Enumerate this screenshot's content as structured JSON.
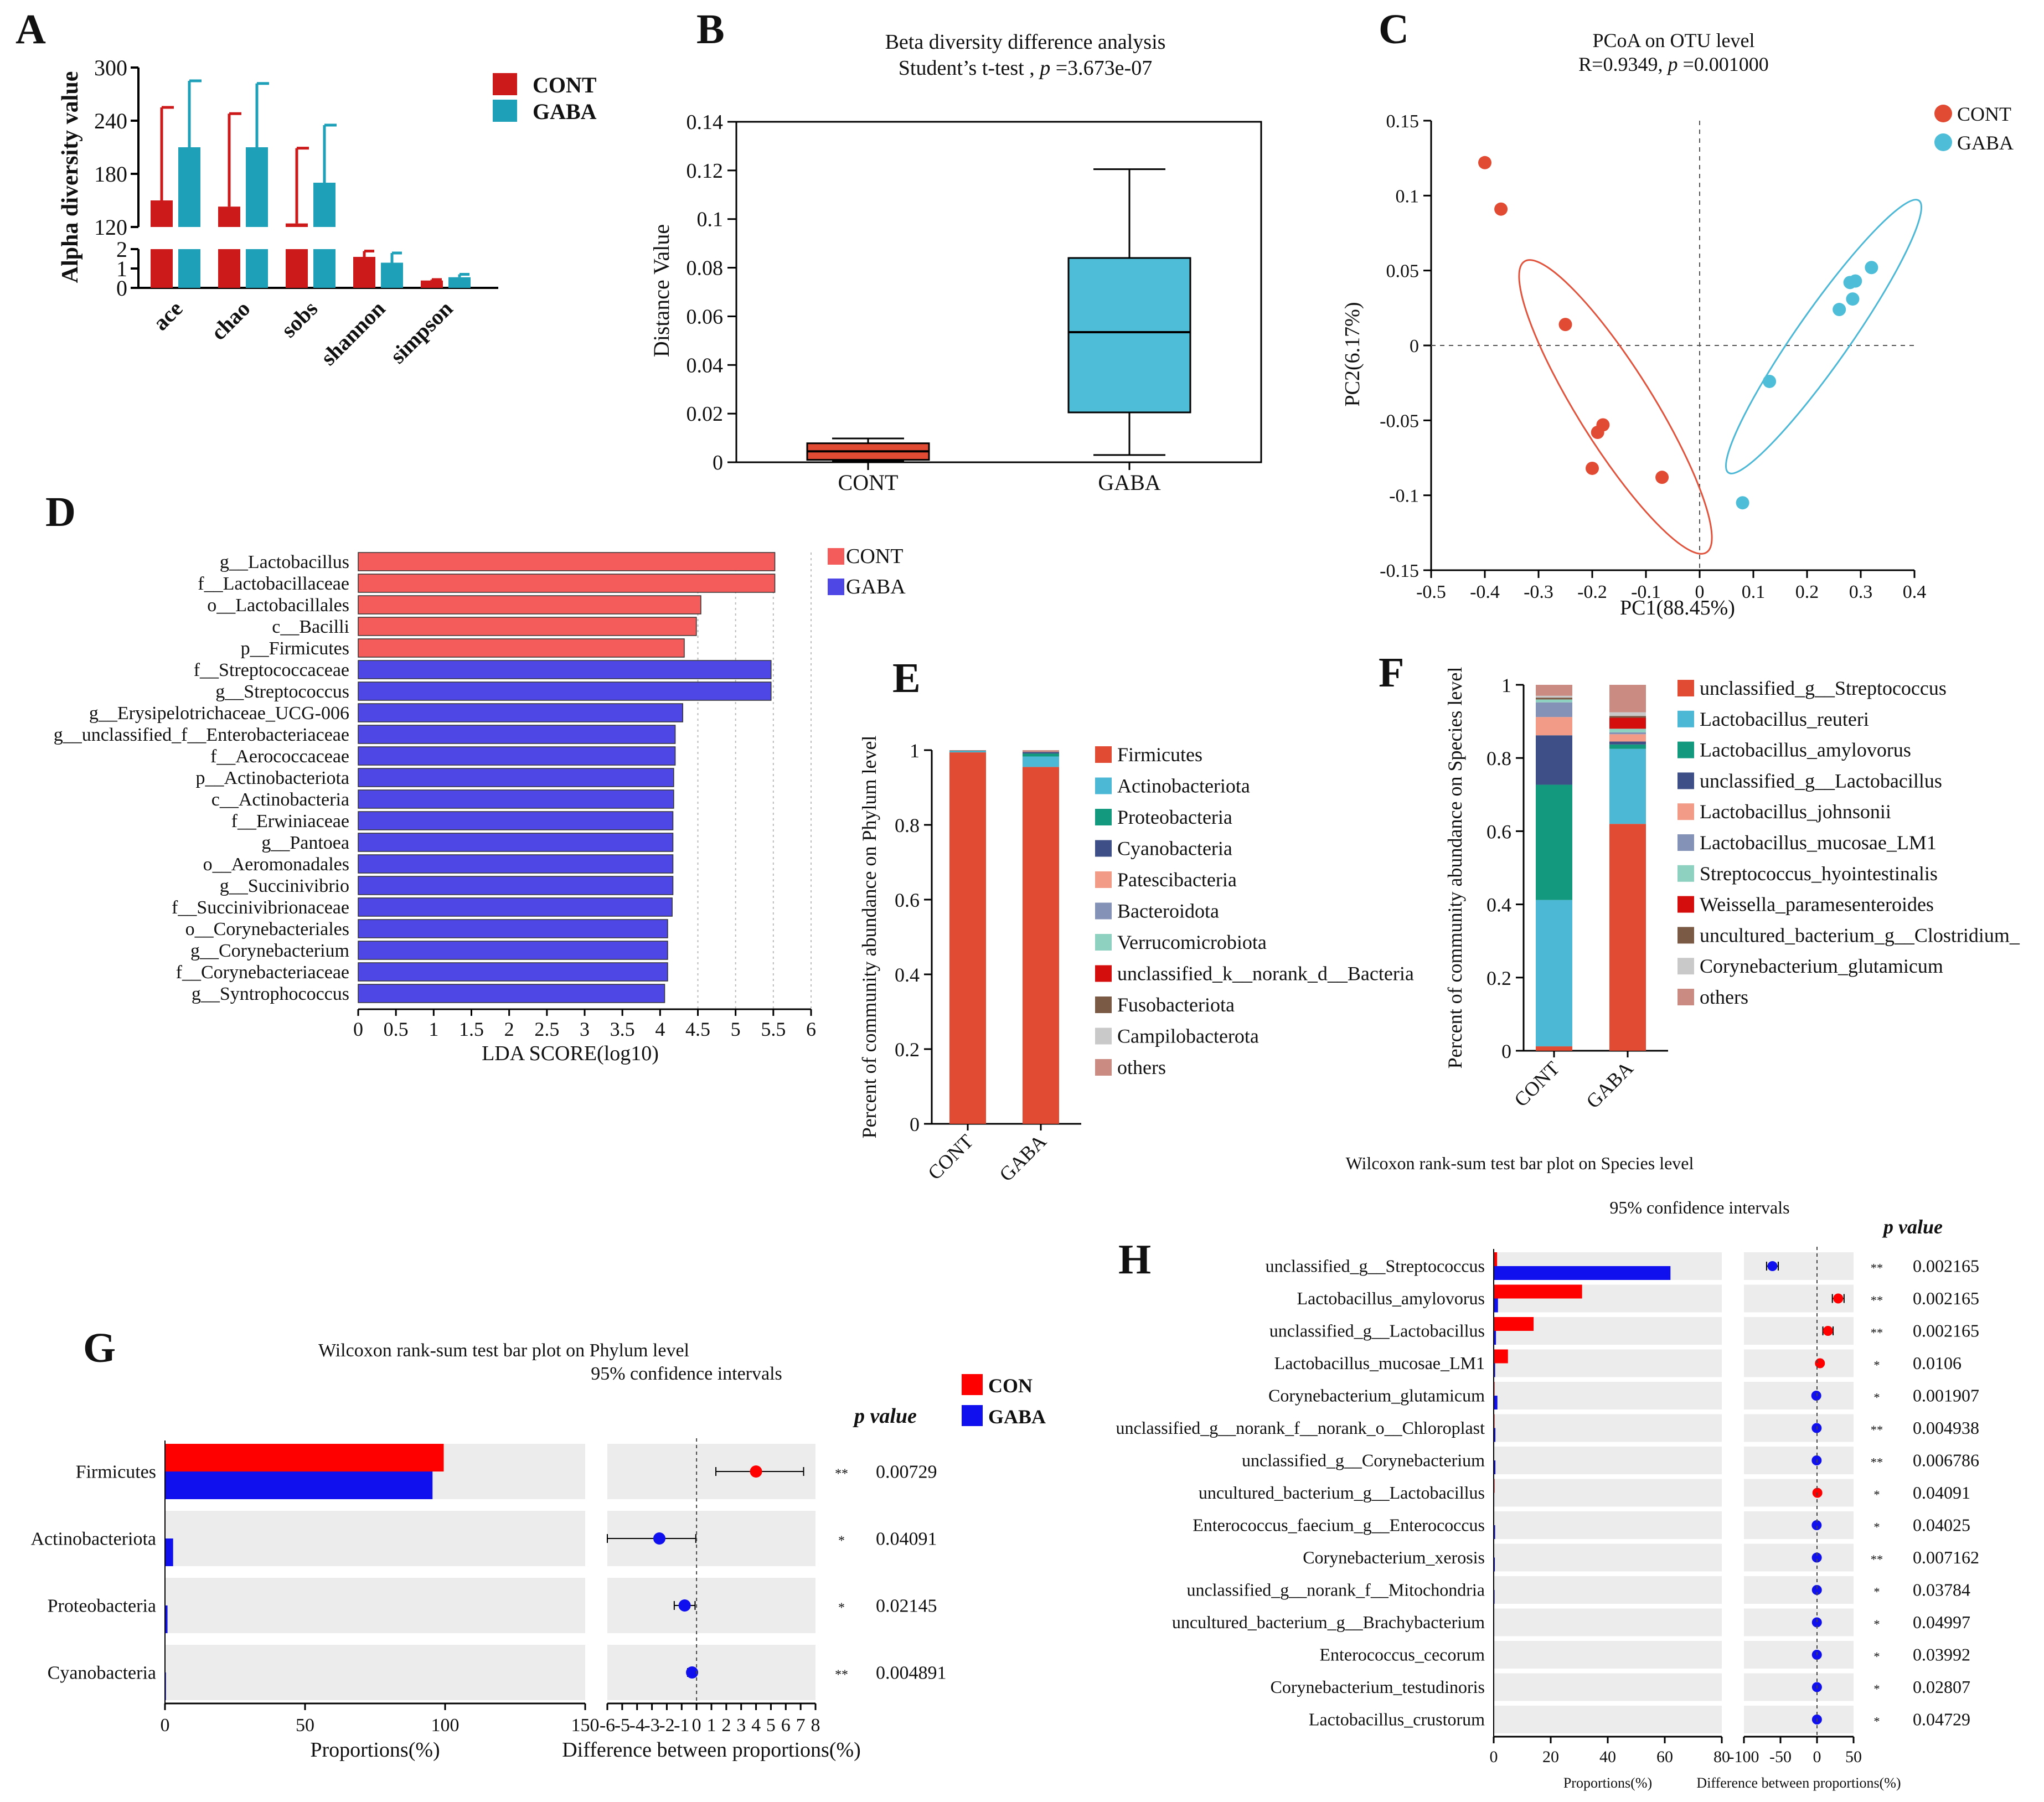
{
  "panel_letters": {
    "A": "A",
    "B": "B",
    "C": "C",
    "D": "D",
    "E": "E",
    "F": "F",
    "G": "G",
    "H": "H"
  },
  "colors": {
    "cont": "#cc1a1a",
    "gaba": "#1ea0b8",
    "light_red": "#f45b5b",
    "blue_bar": "#4f46e6",
    "stack_red": "#e24b33",
    "g_red": "#ff0000",
    "g_blue": "#1010ee",
    "grey_bg": "#ececec"
  },
  "chart_data": [
    {
      "id": "A",
      "type": "bar",
      "ylabel": "Alpha diversity value",
      "categories": [
        "ace",
        "chao",
        "sobs",
        "shannon",
        "simpson"
      ],
      "series": [
        {
          "name": "CONT",
          "values": [
            150,
            143,
            124,
            1.6,
            0.38
          ],
          "errors": [
            105,
            105,
            85,
            0.3,
            0.05
          ]
        },
        {
          "name": "GABA",
          "values": [
            210,
            210,
            170,
            1.3,
            0.55
          ],
          "errors": [
            75,
            72,
            65,
            0.5,
            0.15
          ]
        }
      ],
      "yticks_upper": [
        "120",
        "180",
        "240",
        "300"
      ],
      "yticks_lower": [
        "0",
        "1",
        "2"
      ],
      "legend": [
        "CONT",
        "GABA"
      ]
    },
    {
      "id": "B",
      "type": "box",
      "title": "Beta diversity difference analysis",
      "subtitle_prefix": "Student’s t-test ,",
      "subtitle_p": "p",
      "subtitle_value": "=3.673e-07",
      "ylabel": "Distance Value",
      "ylim": [
        0,
        0.14
      ],
      "yticks": [
        "0",
        "0.02",
        "0.04",
        "0.06",
        "0.08",
        "0.1",
        "0.12",
        "0.14"
      ],
      "groups": [
        {
          "name": "CONT",
          "min": 0.0005,
          "q1": 0.001,
          "median": 0.0045,
          "q3": 0.0078,
          "max": 0.0098
        },
        {
          "name": "GABA",
          "min": 0.003,
          "q1": 0.0205,
          "median": 0.0535,
          "q3": 0.084,
          "max": 0.1205
        }
      ]
    },
    {
      "id": "C",
      "type": "scatter",
      "title": "PCoA on OTU level",
      "subtitle_prefix": "R=0.9349,",
      "subtitle_p": "p",
      "subtitle_value": "=0.001000",
      "xlabel": "PC1(88.45%)",
      "ylabel": "PC2(6.17%)",
      "xlim": [
        -0.5,
        0.4
      ],
      "ylim": [
        -0.15,
        0.15
      ],
      "xticks": [
        "-0.5",
        "-0.4",
        "-0.3",
        "-0.2",
        "-0.1",
        "0",
        "0.1",
        "0.2",
        "0.3",
        "0.4"
      ],
      "yticks": [
        "-0.15",
        "-0.1",
        "-0.05",
        "0",
        "0.05",
        "0.1",
        "0.15"
      ],
      "series": [
        {
          "name": "CONT",
          "x": [
            -0.4,
            -0.37,
            -0.25,
            -0.18,
            -0.19,
            -0.2,
            -0.07
          ],
          "y": [
            0.122,
            0.091,
            0.014,
            -0.053,
            -0.058,
            -0.082,
            -0.088
          ]
        },
        {
          "name": "GABA",
          "x": [
            0.32,
            0.29,
            0.28,
            0.285,
            0.26,
            0.13,
            0.08
          ],
          "y": [
            0.052,
            0.043,
            0.042,
            0.031,
            0.024,
            -0.024,
            -0.105
          ]
        }
      ]
    },
    {
      "id": "D",
      "type": "bar",
      "orientation": "horizontal",
      "xlabel": "LDA SCORE(log10)",
      "xlim": [
        0,
        6
      ],
      "xticks": [
        "0",
        "0.5",
        "1",
        "1.5",
        "2",
        "2.5",
        "3",
        "3.5",
        "4",
        "4.5",
        "5",
        "5.5",
        "6"
      ],
      "legend": [
        "CONT",
        "GABA"
      ],
      "categories": [
        "g__Lactobacillus",
        "f__Lactobacillaceae",
        "o__Lactobacillales",
        "c__Bacilli",
        "p__Firmicutes",
        "f__Streptococcaceae",
        "g__Streptococcus",
        "g__Erysipelotrichaceae_UCG-006",
        "g__unclassified_f__Enterobacteriaceae",
        "f__Aerococcaceae",
        "p__Actinobacteriota",
        "c__Actinobacteria",
        "f__Erwiniaceae",
        "g__Pantoea",
        "o__Aeromonadales",
        "g__Succinivibrio",
        "f__Succinivibrionaceae",
        "o__Corynebacteriales",
        "g__Corynebacterium",
        "f__Corynebacteriaceae",
        "g__Syntrophococcus"
      ],
      "values": [
        5.52,
        5.52,
        4.54,
        4.48,
        4.32,
        5.47,
        5.47,
        4.3,
        4.2,
        4.2,
        4.18,
        4.18,
        4.17,
        4.17,
        4.17,
        4.17,
        4.16,
        4.1,
        4.1,
        4.1,
        4.06
      ],
      "groups": [
        "CONT",
        "CONT",
        "CONT",
        "CONT",
        "CONT",
        "GABA",
        "GABA",
        "GABA",
        "GABA",
        "GABA",
        "GABA",
        "GABA",
        "GABA",
        "GABA",
        "GABA",
        "GABA",
        "GABA",
        "GABA",
        "GABA",
        "GABA",
        "GABA"
      ]
    },
    {
      "id": "E",
      "type": "bar",
      "stacked": true,
      "ylabel": "Percent of community abundance on Phylum level",
      "ylim": [
        0,
        1
      ],
      "yticks": [
        "0",
        "0.2",
        "0.4",
        "0.6",
        "0.8",
        "1"
      ],
      "categories": [
        "CONT",
        "GABA"
      ],
      "legend": [
        "Firmicutes",
        "Actinobacteriota",
        "Proteobacteria",
        "Cyanobacteria",
        "Patescibacteria",
        "Bacteroidota",
        "Verrucomicrobiota",
        "unclassified_k__norank_d__Bacteria",
        "Fusobacteriota",
        "Campilobacterota",
        "others"
      ],
      "legend_colors": [
        "#e24b33",
        "#4db8d6",
        "#139a7e",
        "#3d4f86",
        "#f29b86",
        "#8592b8",
        "#8fd1c0",
        "#d40d0d",
        "#7a5a45",
        "#c9c9c9",
        "#c98b82"
      ],
      "series": [
        {
          "name": "Firmicutes",
          "values": [
            0.994,
            0.955
          ]
        },
        {
          "name": "Actinobacteriota",
          "values": [
            0.003,
            0.028
          ]
        },
        {
          "name": "Proteobacteria",
          "values": [
            0.001,
            0.008
          ]
        },
        {
          "name": "Cyanobacteria",
          "values": [
            0.001,
            0.004
          ]
        },
        {
          "name": "others",
          "values": [
            0.001,
            0.005
          ]
        }
      ]
    },
    {
      "id": "F",
      "type": "bar",
      "stacked": true,
      "ylabel": "Percent of community abundance on Species level",
      "ylim": [
        0,
        1
      ],
      "yticks": [
        "0",
        "0.2",
        "0.4",
        "0.6",
        "0.8",
        "1"
      ],
      "categories": [
        "CONT",
        "GABA"
      ],
      "legend": [
        "unclassified_g__Streptococcus",
        "Lactobacillus_reuteri",
        "Lactobacillus_amylovorus",
        "unclassified_g__Lactobacillus",
        "Lactobacillus_johnsonii",
        "Lactobacillus_mucosae_LM1",
        "Streptococcus_hyointestinalis",
        "Weissella_paramesenteroides",
        "uncultured_bacterium_g__Clostridium_",
        "Corynebacterium_glutamicum",
        "others"
      ],
      "legend_colors": [
        "#e24b33",
        "#4db8d6",
        "#139a7e",
        "#3d4f86",
        "#f29b86",
        "#8592b8",
        "#8fd1c0",
        "#d40d0d",
        "#7a5a45",
        "#c9c9c9",
        "#c98b82"
      ],
      "series": [
        {
          "name": "unclassified_g__Streptococcus",
          "values": [
            0.012,
            0.62
          ]
        },
        {
          "name": "Lactobacillus_reuteri",
          "values": [
            0.4,
            0.205
          ]
        },
        {
          "name": "Lactobacillus_amylovorus",
          "values": [
            0.315,
            0.012
          ]
        },
        {
          "name": "unclassified_g__Lactobacillus",
          "values": [
            0.135,
            0.008
          ]
        },
        {
          "name": "Lactobacillus_johnsonii",
          "values": [
            0.05,
            0.02
          ]
        },
        {
          "name": "Lactobacillus_mucosae_LM1",
          "values": [
            0.04,
            0.005
          ]
        },
        {
          "name": "Streptococcus_hyointestinalis",
          "values": [
            0.008,
            0.01
          ]
        },
        {
          "name": "Weissella_paramesenteroides",
          "values": [
            0.0,
            0.03
          ]
        },
        {
          "name": "uncultured_bacterium_g__Clostridium_",
          "values": [
            0.005,
            0.005
          ]
        },
        {
          "name": "Corynebacterium_glutamicum",
          "values": [
            0.005,
            0.01
          ]
        },
        {
          "name": "others",
          "values": [
            0.03,
            0.075
          ]
        }
      ]
    },
    {
      "id": "G",
      "type": "bar",
      "orientation": "horizontal",
      "title": "Wilcoxon rank-sum test bar plot on Phylum level",
      "subtitle": "95% confidence intervals",
      "xlabel_left": "Proportions(%)",
      "xlabel_right": "Difference between proportions(%)",
      "pvalue_header": "p value",
      "xticks_left": [
        "0",
        "50",
        "100",
        "150"
      ],
      "xticks_right": [
        "-6",
        "-5",
        "-4",
        "-3",
        "-2",
        "-1",
        "0",
        "1",
        "2",
        "3",
        "4",
        "5",
        "6",
        "7",
        "8"
      ],
      "legend": [
        "CON",
        "GABA"
      ],
      "categories": [
        "Firmicutes",
        "Actinobacteriota",
        "Proteobacteria",
        "Cyanobacteria"
      ],
      "series": [
        {
          "name": "CON",
          "values": [
            99.5,
            0.2,
            0.1,
            0.05
          ]
        },
        {
          "name": "GABA",
          "values": [
            95.5,
            2.9,
            0.9,
            0.35
          ]
        }
      ],
      "diff": [
        4.0,
        -2.5,
        -0.8,
        -0.3
      ],
      "ci_low": [
        1.3,
        -6.0,
        -1.5,
        -0.6
      ],
      "ci_high": [
        7.2,
        -0.05,
        -0.1,
        -0.05
      ],
      "sig": [
        "**",
        "*",
        "*",
        "**"
      ],
      "pvalues": [
        "0.00729",
        "0.04091",
        "0.02145",
        "0.004891"
      ]
    },
    {
      "id": "H",
      "type": "bar",
      "orientation": "horizontal",
      "title": "Wilcoxon rank-sum test bar plot on Species level",
      "subtitle": "95% confidence intervals",
      "xlabel_left": "Proportions(%)",
      "xlabel_right": "Difference between proportions(%)",
      "pvalue_header": "p value",
      "xticks_left": [
        "0",
        "20",
        "40",
        "60",
        "80"
      ],
      "xticks_right": [
        "-100",
        "-50",
        "0",
        "50"
      ],
      "categories": [
        "unclassified_g__Streptococcus",
        "Lactobacillus_amylovorus",
        "unclassified_g__Lactobacillus",
        "Lactobacillus_mucosae_LM1",
        "Corynebacterium_glutamicum",
        "unclassified_g__norank_f__norank_o__Chloroplast",
        "unclassified_g__Corynebacterium",
        "uncultured_bacterium_g__Lactobacillus",
        "Enterococcus_faecium_g__Enterococcus",
        "Corynebacterium_xerosis",
        "unclassified_g__norank_f__Mitochondria",
        "uncultured_bacterium_g__Brachybacterium",
        "Enterococcus_cecorum",
        "Corynebacterium_testudinoris",
        "Lactobacillus_crustorum"
      ],
      "series": [
        {
          "name": "CON",
          "values": [
            1.2,
            31,
            14,
            5,
            0.3,
            0.3,
            0.1,
            0.3,
            0.05,
            0.1,
            0.1,
            0.05,
            0.05,
            0.05,
            0.05
          ]
        },
        {
          "name": "GABA",
          "values": [
            62,
            1.5,
            0.8,
            0.5,
            1.3,
            0.6,
            0.6,
            0.2,
            0.5,
            0.4,
            0.3,
            0.2,
            0.2,
            0.1,
            0.1
          ]
        }
      ],
      "diff": [
        -61,
        29,
        15,
        4,
        -1,
        -0.5,
        -0.5,
        0.5,
        -0.5,
        -0.3,
        -0.2,
        -0.2,
        -0.2,
        -0.1,
        -0.1
      ],
      "ci_low": [
        -69,
        21,
        8,
        1,
        -1.5,
        -0.8,
        -0.8,
        0.1,
        -0.8,
        -0.5,
        -0.4,
        -0.3,
        -0.3,
        -0.2,
        -0.2
      ],
      "ci_high": [
        -53,
        37,
        22,
        7,
        -0.5,
        -0.2,
        -0.2,
        0.9,
        -0.2,
        -0.1,
        -0.05,
        -0.05,
        -0.05,
        -0.02,
        -0.02
      ],
      "sig": [
        "**",
        "**",
        "**",
        "*",
        "*",
        "**",
        "**",
        "*",
        "*",
        "**",
        "*",
        "*",
        "*",
        "*",
        "*"
      ],
      "pvalues": [
        "0.002165",
        "0.002165",
        "0.002165",
        "0.0106",
        "0.001907",
        "0.004938",
        "0.006786",
        "0.04091",
        "0.04025",
        "0.007162",
        "0.03784",
        "0.04997",
        "0.03992",
        "0.02807",
        "0.04729"
      ]
    }
  ]
}
